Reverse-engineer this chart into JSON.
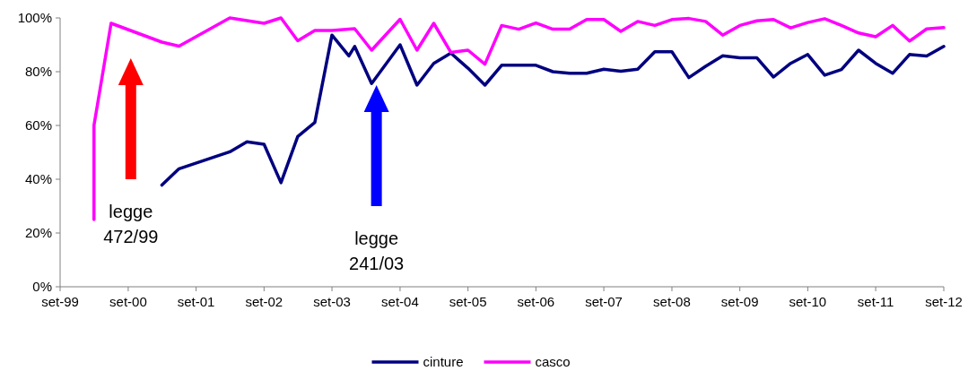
{
  "chart_data": {
    "type": "line",
    "xlim": [
      "1999-09",
      "2012-09"
    ],
    "xticks": [
      {
        "value": "1999-09",
        "label": "set-99"
      },
      {
        "value": "2000-09",
        "label": "set-00"
      },
      {
        "value": "2001-09",
        "label": "set-01"
      },
      {
        "value": "2002-09",
        "label": "set-02"
      },
      {
        "value": "2003-09",
        "label": "set-03"
      },
      {
        "value": "2004-09",
        "label": "set-04"
      },
      {
        "value": "2005-09",
        "label": "set-05"
      },
      {
        "value": "2006-09",
        "label": "set-06"
      },
      {
        "value": "2007-09",
        "label": "set-07"
      },
      {
        "value": "2008-09",
        "label": "set-08"
      },
      {
        "value": "2009-09",
        "label": "set-09"
      },
      {
        "value": "2010-09",
        "label": "set-10"
      },
      {
        "value": "2011-09",
        "label": "set-11"
      },
      {
        "value": "2012-09",
        "label": "set-12"
      }
    ],
    "ylim": [
      0,
      100
    ],
    "yticks": [
      {
        "value": 0,
        "label": "0%"
      },
      {
        "value": 20,
        "label": "20%"
      },
      {
        "value": 40,
        "label": "40%"
      },
      {
        "value": 60,
        "label": "60%"
      },
      {
        "value": 80,
        "label": "80%"
      },
      {
        "value": 100,
        "label": "100%"
      }
    ],
    "grid": false,
    "legend": "bottom",
    "marker": "none",
    "line_style": "solid",
    "series": [
      {
        "name": "cinture",
        "color": "#000080",
        "x": [
          "2001-03",
          "2001-06",
          "2002-03",
          "2002-06",
          "2002-09",
          "2002-12",
          "2003-03",
          "2003-06",
          "2003-09",
          "2003-12",
          "2004-01",
          "2004-04",
          "2004-09",
          "2004-12",
          "2005-03",
          "2005-06",
          "2005-09",
          "2005-12",
          "2006-03",
          "2006-06",
          "2006-09",
          "2006-12",
          "2007-03",
          "2007-06",
          "2007-09",
          "2007-12",
          "2008-03",
          "2008-06",
          "2008-09",
          "2008-12",
          "2009-03",
          "2009-06",
          "2009-09",
          "2009-12",
          "2010-03",
          "2010-06",
          "2010-09",
          "2010-12",
          "2011-03",
          "2011-06",
          "2011-09",
          "2011-12",
          "2012-03",
          "2012-06",
          "2012-09"
        ],
        "values": [
          37.8,
          43.9,
          50.2,
          53.9,
          53,
          38.7,
          55.9,
          61.1,
          93.6,
          85.9,
          89.4,
          75.6,
          90,
          75,
          83.1,
          86.9,
          81.3,
          75,
          82.4,
          82.4,
          82.4,
          80,
          79.4,
          79.4,
          80.9,
          80.2,
          80.9,
          87.4,
          87.4,
          77.8,
          82,
          85.9,
          85.2,
          85.2,
          78,
          83.1,
          86.4,
          78.7,
          80.8,
          88,
          83.1,
          79.4,
          86.4,
          85.8,
          89.4
        ]
      },
      {
        "name": "casco",
        "color": "#ff00ff",
        "x": [
          "2000-03",
          "2000-03",
          "2000-06",
          "2001-03",
          "2001-06",
          "2002-03",
          "2002-06",
          "2002-09",
          "2002-12",
          "2003-03",
          "2003-06",
          "2003-09",
          "2004-01",
          "2004-04",
          "2004-09",
          "2004-12",
          "2005-03",
          "2005-06",
          "2005-09",
          "2005-12",
          "2006-03",
          "2006-06",
          "2006-09",
          "2006-12",
          "2007-03",
          "2007-06",
          "2007-09",
          "2007-12",
          "2008-03",
          "2008-06",
          "2008-09",
          "2008-12",
          "2009-03",
          "2009-06",
          "2009-09",
          "2009-12",
          "2010-03",
          "2010-06",
          "2010-09",
          "2010-12",
          "2011-03",
          "2011-06",
          "2011-09",
          "2011-12",
          "2012-03",
          "2012-06",
          "2012-09"
        ],
        "values": [
          25,
          60,
          98,
          91,
          89.5,
          100,
          99,
          98,
          100,
          91.5,
          95.3,
          95.3,
          96,
          88,
          99.5,
          88,
          98,
          87.2,
          88,
          82.8,
          97.2,
          95.8,
          98.1,
          95.8,
          95.8,
          99.4,
          99.4,
          95,
          98.7,
          97.2,
          99.4,
          99.8,
          98.7,
          93.6,
          97.2,
          98.9,
          99.4,
          96.3,
          98.3,
          99.7,
          97.2,
          94.4,
          93,
          97.2,
          91.4,
          95.9,
          96.4
        ]
      }
    ],
    "annotations": [
      "legge\n472/99",
      "legge\n241/03"
    ]
  }
}
